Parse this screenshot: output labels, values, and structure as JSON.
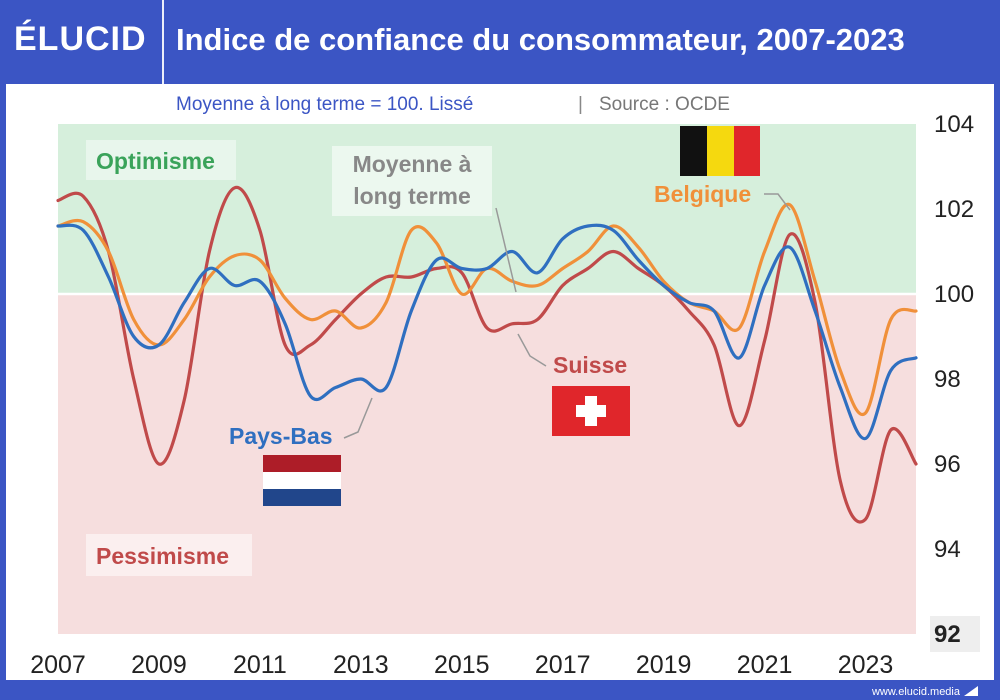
{
  "header": {
    "logo": "ÉLUCID",
    "title": "Indice de confiance du consommateur, 2007-2023"
  },
  "footer": {
    "url": "www.elucid.media"
  },
  "colors": {
    "header_bg": "#3b55c4",
    "optimism_zone": "#d6efdc",
    "pessimism_zone": "#f6dede",
    "belgique": "#f0903a",
    "pays_bas": "#2f6fc0",
    "suisse": "#c04a4a",
    "optimisme_label": "#3aa35a",
    "pessimisme_label": "#c04a4a"
  },
  "chart_data": {
    "type": "line",
    "title": "Indice de confiance du consommateur, 2007-2023",
    "subtitle_main": "Moyenne à long terme = 100. Lissé",
    "subtitle_separator": "|",
    "subtitle_source": "Source : OCDE",
    "xlim": [
      2007,
      2024
    ],
    "ylim": [
      92,
      104
    ],
    "x_ticks": [
      "2007",
      "2009",
      "2011",
      "2013",
      "2015",
      "2017",
      "2019",
      "2021",
      "2023"
    ],
    "y_ticks": [
      "104",
      "102",
      "100",
      "98",
      "96",
      "94",
      "92"
    ],
    "reference_line": {
      "value": 100,
      "label": "Moyenne à long terme"
    },
    "zones": {
      "above": "Optimisme",
      "below": "Pessimisme"
    },
    "series": [
      {
        "name": "Belgique",
        "color": "#f0903a",
        "x": [
          2007.0,
          2007.5,
          2008.0,
          2008.5,
          2009.0,
          2009.5,
          2010.0,
          2010.5,
          2011.0,
          2011.5,
          2012.0,
          2012.5,
          2013.0,
          2013.5,
          2014.0,
          2014.5,
          2015.0,
          2015.5,
          2016.0,
          2016.5,
          2017.0,
          2017.5,
          2018.0,
          2018.5,
          2019.0,
          2019.5,
          2020.0,
          2020.5,
          2021.0,
          2021.5,
          2022.0,
          2022.5,
          2023.0,
          2023.5,
          2024.0
        ],
        "values": [
          101.6,
          101.7,
          101.0,
          99.4,
          98.8,
          99.4,
          100.4,
          100.9,
          100.8,
          99.9,
          99.4,
          99.6,
          99.2,
          99.8,
          101.5,
          101.2,
          100.0,
          100.6,
          100.3,
          100.2,
          100.6,
          101.0,
          101.6,
          101.1,
          100.3,
          99.8,
          99.6,
          99.2,
          101.0,
          102.1,
          100.3,
          98.2,
          97.2,
          99.4,
          99.6
        ]
      },
      {
        "name": "Pays-Bas",
        "color": "#2f6fc0",
        "x": [
          2007.0,
          2007.5,
          2008.0,
          2008.5,
          2009.0,
          2009.5,
          2010.0,
          2010.5,
          2011.0,
          2011.5,
          2012.0,
          2012.5,
          2013.0,
          2013.5,
          2014.0,
          2014.5,
          2015.0,
          2015.5,
          2016.0,
          2016.5,
          2017.0,
          2017.5,
          2018.0,
          2018.5,
          2019.0,
          2019.5,
          2020.0,
          2020.5,
          2021.0,
          2021.5,
          2022.0,
          2022.5,
          2023.0,
          2023.5,
          2024.0
        ],
        "values": [
          101.6,
          101.5,
          100.4,
          99.0,
          98.8,
          99.8,
          100.6,
          100.2,
          100.3,
          99.3,
          97.6,
          97.8,
          98.0,
          97.8,
          99.6,
          100.8,
          100.6,
          100.6,
          101.0,
          100.5,
          101.3,
          101.6,
          101.5,
          100.8,
          100.2,
          99.8,
          99.6,
          98.5,
          100.2,
          101.1,
          99.6,
          97.8,
          96.6,
          98.2,
          98.5
        ]
      },
      {
        "name": "Suisse",
        "color": "#c04a4a",
        "x": [
          2007.0,
          2007.5,
          2008.0,
          2008.5,
          2009.0,
          2009.5,
          2010.0,
          2010.5,
          2011.0,
          2011.5,
          2012.0,
          2012.5,
          2013.0,
          2013.5,
          2014.0,
          2014.5,
          2015.0,
          2015.5,
          2016.0,
          2016.5,
          2017.0,
          2017.5,
          2018.0,
          2018.5,
          2019.0,
          2019.5,
          2020.0,
          2020.5,
          2021.0,
          2021.5,
          2022.0,
          2022.5,
          2023.0,
          2023.5,
          2024.0
        ],
        "values": [
          102.2,
          102.3,
          101.0,
          98.0,
          96.0,
          97.5,
          101.0,
          102.5,
          101.5,
          98.8,
          98.8,
          99.4,
          100.0,
          100.4,
          100.4,
          100.6,
          100.5,
          99.2,
          99.3,
          99.4,
          100.2,
          100.6,
          101.0,
          100.6,
          100.2,
          99.6,
          98.8,
          96.9,
          98.9,
          101.4,
          99.8,
          95.6,
          94.7,
          96.8,
          96.0
        ]
      }
    ],
    "annotations": [
      {
        "text": "Belgique",
        "series": "Belgique"
      },
      {
        "text": "Pays-Bas",
        "series": "Pays-Bas"
      },
      {
        "text": "Suisse",
        "series": "Suisse"
      },
      {
        "text_line1": "Moyenne à",
        "text_line2": "long terme"
      }
    ]
  }
}
